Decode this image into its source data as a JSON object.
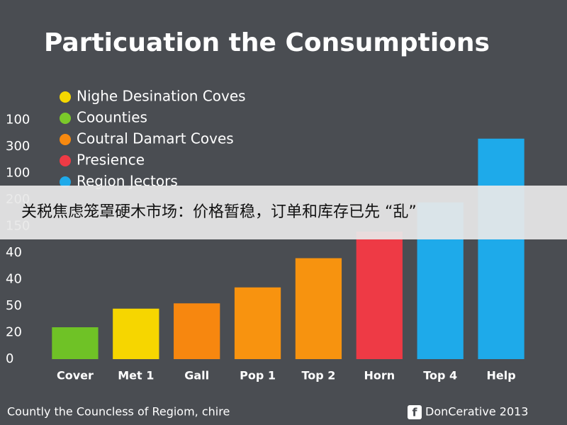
{
  "chart_data": {
    "type": "bar",
    "title": "Particuation the Consumptions",
    "legend": [
      {
        "label": "Nighe Desination Coves",
        "color": "#f5d800"
      },
      {
        "label": "Coounties",
        "color": "#7bc92a"
      },
      {
        "label": "Coutral Damart Coves",
        "color": "#f7890f"
      },
      {
        "label": "Presience",
        "color": "#ee3a45"
      },
      {
        "label": "Region Jectors",
        "color": "#1eaaea"
      }
    ],
    "categories": [
      "Cover",
      "Met 1",
      "Gall",
      "Pop 1",
      "Top 2",
      "Horn",
      "Top 4",
      "Help"
    ],
    "values": [
      1.2,
      1.9,
      2.1,
      2.7,
      3.8,
      4.8,
      5.9,
      8.3
    ],
    "colors": [
      "#6fc226",
      "#f6d600",
      "#f7870f",
      "#f8930f",
      "#f7930f",
      "#ee3a45",
      "#1eaaea",
      "#1eaaea"
    ],
    "ylim": [
      0,
      9
    ],
    "yticks": [
      0,
      {
        "value": 1,
        "label": "20"
      },
      {
        "value": 2,
        "label": "50"
      },
      {
        "value": 3,
        "label": "40"
      },
      {
        "value": 4,
        "label": "40"
      },
      {
        "value": 5,
        "label": "150"
      },
      {
        "value": 6,
        "label": "200"
      },
      {
        "value": 7,
        "label": "100"
      },
      {
        "value": 8,
        "label": "300"
      },
      {
        "value": 9,
        "label": "100"
      }
    ],
    "source": "Countly the Councless of Regiom, chire",
    "credit": "DonCerative 2013"
  },
  "banner": {
    "text": "关税焦虑笼罩硬木市场：价格暂稳，订单和库存已先 “乱”"
  }
}
